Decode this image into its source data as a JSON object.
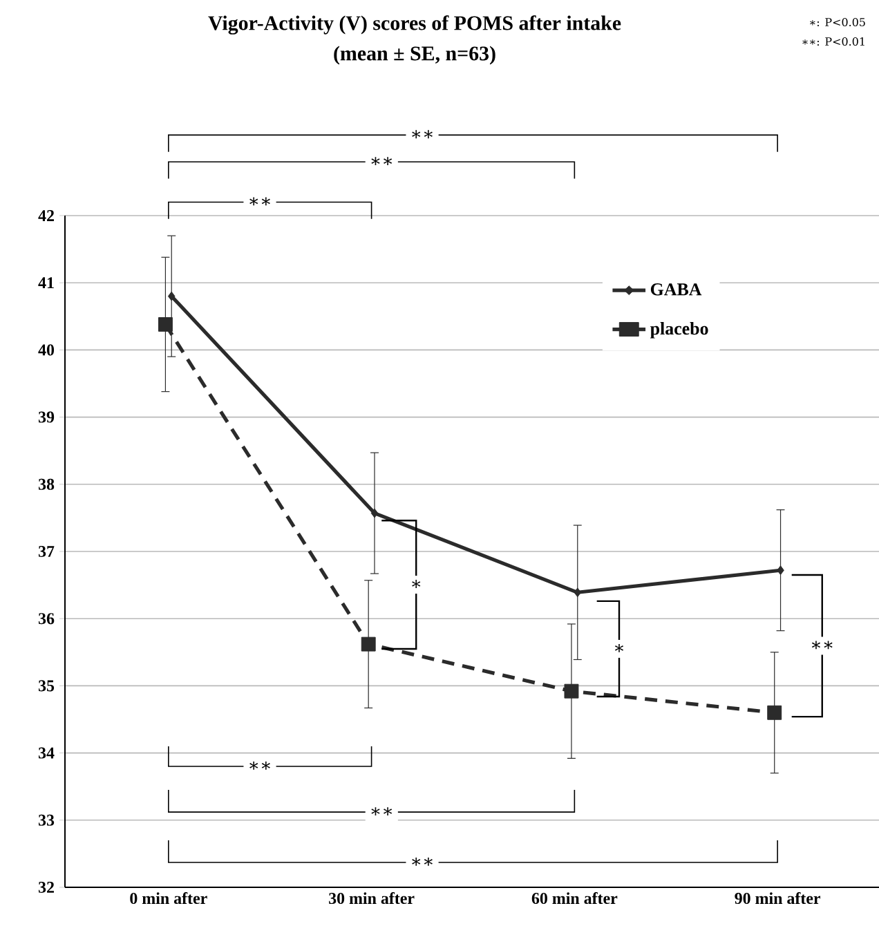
{
  "chart_data": {
    "type": "line",
    "title": "Vigor-Activity (V) scores of POMS after intake",
    "subtitle": "(mean ± SE, n=63)",
    "categories": [
      "0 min after",
      "30 min after",
      "60 min after",
      "90 min after"
    ],
    "series": [
      {
        "name": "GABA",
        "color": "#2b2b2b",
        "values": [
          40.8,
          37.57,
          36.39,
          36.72
        ],
        "errors": [
          0.9,
          0.9,
          1.0,
          0.9
        ],
        "marker": "diamond",
        "line_style": "solid"
      },
      {
        "name": "placebo",
        "color": "#2b2b2b",
        "values": [
          40.38,
          35.62,
          34.92,
          34.6
        ],
        "errors": [
          1.0,
          0.95,
          1.0,
          0.9
        ],
        "marker": "square",
        "line_style": "dashed"
      }
    ],
    "ylim": [
      32,
      42
    ],
    "yticks": [
      32,
      33,
      34,
      35,
      36,
      37,
      38,
      39,
      40,
      41,
      42
    ],
    "grid": "y",
    "legend": "top right",
    "annotations": [
      "∗∗",
      "∗∗",
      "∗∗",
      "∗",
      "∗",
      "∗∗",
      "∗∗",
      "∗∗",
      "∗∗",
      "∗: P<0.05",
      "∗∗: P<0.01"
    ]
  }
}
